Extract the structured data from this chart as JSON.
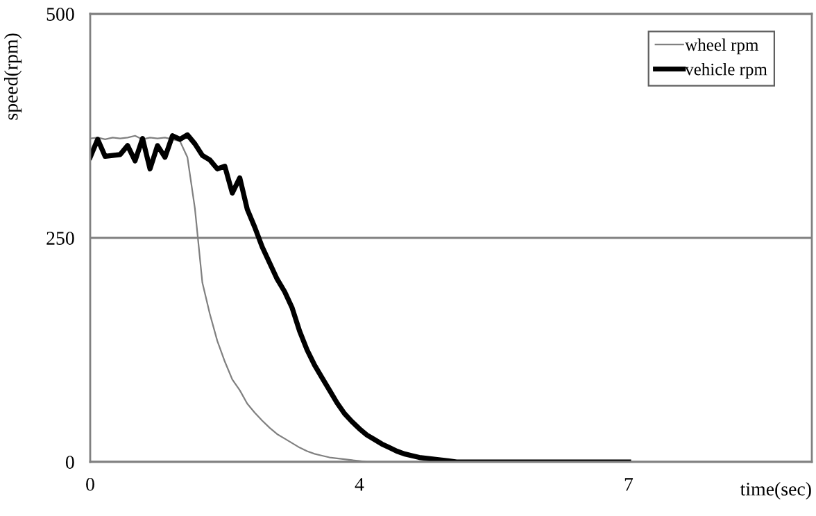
{
  "chart_data": {
    "type": "line",
    "xlabel": "time(sec)",
    "ylabel": "speed(rpm)",
    "categories": [
      "0",
      null,
      null,
      null,
      null,
      null,
      null,
      null,
      null,
      null,
      null,
      null,
      null,
      null,
      null,
      null,
      null,
      null,
      null,
      null,
      null,
      null,
      null,
      null,
      null,
      null,
      null,
      null,
      null,
      null,
      null,
      null,
      null,
      null,
      null,
      null,
      "4",
      null,
      null,
      null,
      null,
      null,
      null,
      null,
      null,
      null,
      null,
      null,
      null,
      null,
      null,
      null,
      null,
      null,
      null,
      null,
      null,
      null,
      null,
      null,
      null,
      null,
      null,
      null,
      null,
      null,
      null,
      null,
      null,
      null,
      null,
      null,
      "7",
      null,
      null,
      null,
      null,
      null,
      null,
      null,
      null,
      null,
      null,
      null,
      null,
      null,
      null,
      null,
      null,
      null,
      null,
      null,
      null,
      null,
      null,
      null,
      null
    ],
    "series": [
      {
        "name": "wheel rpm",
        "color": "#808080",
        "values": [
          361,
          362,
          360,
          362,
          361,
          362,
          364,
          360,
          362,
          361,
          362,
          360,
          358,
          340,
          283,
          200,
          165,
          135,
          112,
          92,
          80,
          65,
          55,
          46,
          38,
          31,
          26,
          21,
          16,
          12,
          9,
          7,
          5,
          4,
          3,
          2,
          1,
          0,
          0,
          0,
          0,
          0,
          0,
          0,
          0,
          0,
          0,
          0,
          0,
          0,
          0,
          0,
          0,
          0,
          0,
          0,
          0,
          0,
          0,
          0,
          0,
          0,
          0,
          0,
          0,
          0,
          0,
          0,
          0,
          0,
          0,
          0,
          0,
          null,
          null,
          null,
          null,
          null,
          null,
          null,
          null,
          null,
          null,
          null,
          null,
          null,
          null,
          null,
          null,
          null,
          null,
          null,
          null,
          null,
          null,
          null,
          null
        ]
      },
      {
        "name": "vehicle rpm",
        "color": "#000000",
        "values": [
          340,
          360,
          341,
          342,
          343,
          353,
          336,
          361,
          327,
          353,
          340,
          364,
          360,
          365,
          355,
          342,
          337,
          327,
          330,
          300,
          317,
          282,
          262,
          240,
          222,
          204,
          190,
          172,
          146,
          125,
          108,
          94,
          80,
          66,
          54,
          45,
          37,
          30,
          25,
          20,
          16,
          12,
          9,
          7,
          5,
          4,
          3,
          2,
          1,
          0,
          0,
          0,
          0,
          0,
          0,
          0,
          0,
          0,
          0,
          0,
          0,
          0,
          0,
          0,
          0,
          0,
          0,
          0,
          0,
          0,
          0,
          0,
          0,
          null,
          null,
          null,
          null,
          null,
          null,
          null,
          null,
          null,
          null,
          null,
          null,
          null,
          null,
          null,
          null,
          null,
          null,
          null,
          null,
          null,
          null,
          null,
          null
        ]
      }
    ],
    "ylim": [
      0,
      500
    ],
    "yticks": [
      0,
      250,
      500
    ],
    "grid": "y",
    "legend": "top right",
    "marker": "none",
    "line_style": "solid"
  }
}
